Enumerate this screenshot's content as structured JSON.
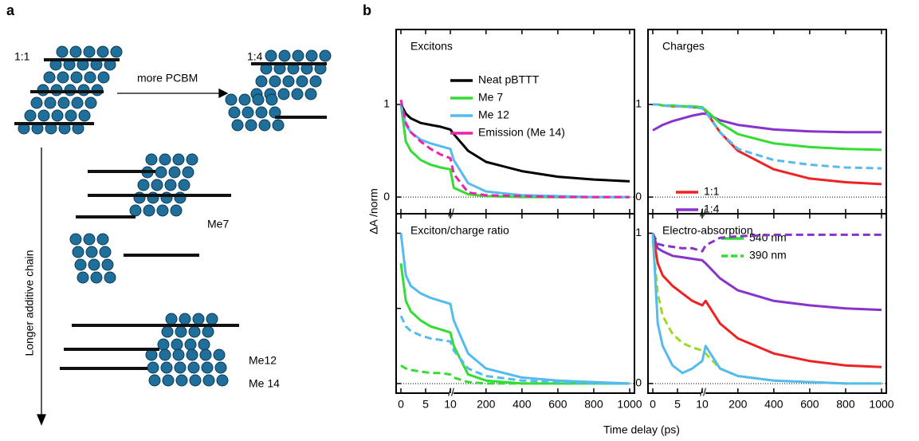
{
  "figure": {
    "panel_a": {
      "label": "a",
      "ratio_1": "1:1",
      "arrow_label": "more PCBM",
      "ratio_4": "1:4",
      "chain_label": "Longer additive chain",
      "me7": "Me7",
      "me12": "Me12",
      "me14": "Me 14"
    },
    "panel_b_label": "b",
    "y_label": "ΔA /norm",
    "x_label": "Time delay (ps)"
  },
  "chart_data": [
    {
      "type": "line",
      "title": "Excitons",
      "xbreak": 10,
      "x": [
        0,
        1,
        2,
        4,
        6,
        8,
        10,
        20,
        100,
        200,
        400,
        600,
        800,
        1000
      ],
      "xlim": [
        0,
        1000
      ],
      "ylim": [
        -0.18,
        1.81
      ],
      "xticks": [
        0,
        5,
        10,
        200,
        400,
        600,
        800,
        1000
      ],
      "yticks": [
        0,
        1
      ],
      "xtick_labels": false,
      "ytick_labels": true,
      "series": [
        {
          "name": "Neat pBTTT",
          "color": "#000000",
          "dash": false,
          "values": [
            1,
            0.9,
            0.85,
            0.8,
            0.78,
            0.76,
            0.73,
            0.68,
            0.5,
            0.38,
            0.28,
            0.22,
            0.19,
            0.17
          ]
        },
        {
          "name": "Me 7",
          "color": "#33dd33",
          "dash": false,
          "values": [
            1,
            0.6,
            0.5,
            0.4,
            0.35,
            0.32,
            0.3,
            0.1,
            0.03,
            0.01,
            0,
            0,
            0,
            0
          ]
        },
        {
          "name": "Me 12",
          "color": "#55bbee",
          "dash": false,
          "values": [
            1,
            0.78,
            0.7,
            0.62,
            0.58,
            0.55,
            0.52,
            0.4,
            0.15,
            0.06,
            0.02,
            0.01,
            0,
            0
          ]
        },
        {
          "name": "Emission (Me 14)",
          "color": "#ee22aa",
          "dash": true,
          "values": [
            1.05,
            0.8,
            0.7,
            0.6,
            0.52,
            0.46,
            0.42,
            0.25,
            0.05,
            0.02,
            0.01,
            0,
            0,
            0
          ]
        }
      ]
    },
    {
      "type": "line",
      "title": "Charges",
      "xbreak": 10,
      "x": [
        0,
        1,
        2,
        4,
        6,
        8,
        10,
        20,
        100,
        200,
        400,
        600,
        800,
        1000
      ],
      "xlim": [
        0,
        1000
      ],
      "ylim": [
        -0.18,
        1.81
      ],
      "xticks": [
        0,
        5,
        10,
        200,
        400,
        600,
        800,
        1000
      ],
      "yticks": [
        0,
        1
      ],
      "xtick_labels": false,
      "ytick_labels": true,
      "series": [
        {
          "name": "1:1",
          "color": "#ee2222",
          "dash": false,
          "values": [
            1,
            1,
            0.99,
            0.98,
            0.98,
            0.97,
            0.97,
            0.93,
            0.7,
            0.5,
            0.3,
            0.2,
            0.16,
            0.14
          ]
        },
        {
          "name": "1:4",
          "color": "#8833cc",
          "dash": false,
          "values": [
            0.72,
            0.75,
            0.78,
            0.82,
            0.85,
            0.88,
            0.9,
            0.9,
            0.83,
            0.78,
            0.73,
            0.71,
            0.7,
            0.7
          ]
        },
        {
          "color": "#33dd33",
          "dash": false,
          "values": [
            1,
            1,
            0.99,
            0.99,
            0.98,
            0.98,
            0.97,
            0.94,
            0.8,
            0.68,
            0.58,
            0.54,
            0.52,
            0.51
          ]
        },
        {
          "color": "#55bbee",
          "dash": true,
          "values": [
            1,
            1,
            0.99,
            0.98,
            0.98,
            0.97,
            0.96,
            0.92,
            0.7,
            0.52,
            0.4,
            0.35,
            0.32,
            0.31
          ]
        }
      ]
    },
    {
      "type": "line",
      "title": "Exciton/charge ratio",
      "xbreak": 10,
      "x": [
        0,
        1,
        2,
        4,
        6,
        8,
        10,
        20,
        100,
        200,
        400,
        600,
        800,
        1000
      ],
      "xlim": [
        0,
        1000
      ],
      "ylim": [
        -0.064,
        1.13
      ],
      "xticks": [
        0,
        5,
        10,
        200,
        400,
        600,
        800,
        1000
      ],
      "yticks": [
        0,
        0.5,
        1
      ],
      "xtick_labels": true,
      "ytick_labels": false,
      "series": [
        {
          "name": "540 nm",
          "color": "#33dd33",
          "dash": false,
          "values": [
            0.8,
            0.55,
            0.48,
            0.42,
            0.38,
            0.36,
            0.34,
            0.25,
            0.06,
            0.02,
            0,
            0,
            0,
            0
          ]
        },
        {
          "name": "390 nm",
          "color": "#33dd33",
          "dash": true,
          "values": [
            0.12,
            0.1,
            0.09,
            0.08,
            0.07,
            0.07,
            0.06,
            0.04,
            0.01,
            0,
            0,
            0,
            0,
            0
          ]
        },
        {
          "color": "#55bbee",
          "dash": false,
          "values": [
            1,
            0.72,
            0.65,
            0.6,
            0.57,
            0.55,
            0.53,
            0.42,
            0.2,
            0.1,
            0.04,
            0.02,
            0.01,
            0
          ]
        },
        {
          "color": "#55bbee",
          "dash": true,
          "values": [
            0.45,
            0.38,
            0.35,
            0.32,
            0.3,
            0.29,
            0.28,
            0.22,
            0.1,
            0.05,
            0.02,
            0.01,
            0,
            0
          ]
        }
      ]
    },
    {
      "type": "line",
      "title": "Electro-absorption",
      "xbreak": 10,
      "x": [
        0,
        1,
        2,
        4,
        6,
        8,
        10,
        20,
        100,
        200,
        400,
        600,
        800,
        1000
      ],
      "xlim": [
        0,
        1000
      ],
      "ylim": [
        -0.064,
        1.13
      ],
      "xticks": [
        0,
        5,
        10,
        200,
        400,
        600,
        800,
        1000
      ],
      "yticks": [
        0,
        1
      ],
      "xtick_labels": true,
      "ytick_labels": true,
      "series": [
        {
          "color": "#8833cc",
          "dash": true,
          "values": [
            1,
            0.93,
            0.92,
            0.91,
            0.9,
            0.9,
            0.88,
            0.92,
            0.97,
            0.98,
            0.99,
            0.99,
            0.99,
            0.99
          ]
        },
        {
          "color": "#8833cc",
          "dash": false,
          "values": [
            1,
            0.9,
            0.88,
            0.85,
            0.84,
            0.83,
            0.82,
            0.8,
            0.7,
            0.62,
            0.55,
            0.52,
            0.5,
            0.49
          ]
        },
        {
          "color": "#ee2222",
          "dash": false,
          "values": [
            1,
            0.8,
            0.72,
            0.65,
            0.6,
            0.55,
            0.52,
            0.55,
            0.4,
            0.3,
            0.2,
            0.15,
            0.12,
            0.11
          ]
        },
        {
          "color": "#99dd22",
          "dash": true,
          "values": [
            0.95,
            0.6,
            0.45,
            0.33,
            0.27,
            0.24,
            0.22,
            0.2,
            0.1,
            0.05,
            0.02,
            0.01,
            0,
            0
          ]
        },
        {
          "color": "#55bbee",
          "dash": false,
          "values": [
            1,
            0.4,
            0.25,
            0.12,
            0.07,
            0.1,
            0.15,
            0.25,
            0.1,
            0.05,
            0.02,
            0.01,
            0,
            0
          ]
        }
      ]
    }
  ]
}
